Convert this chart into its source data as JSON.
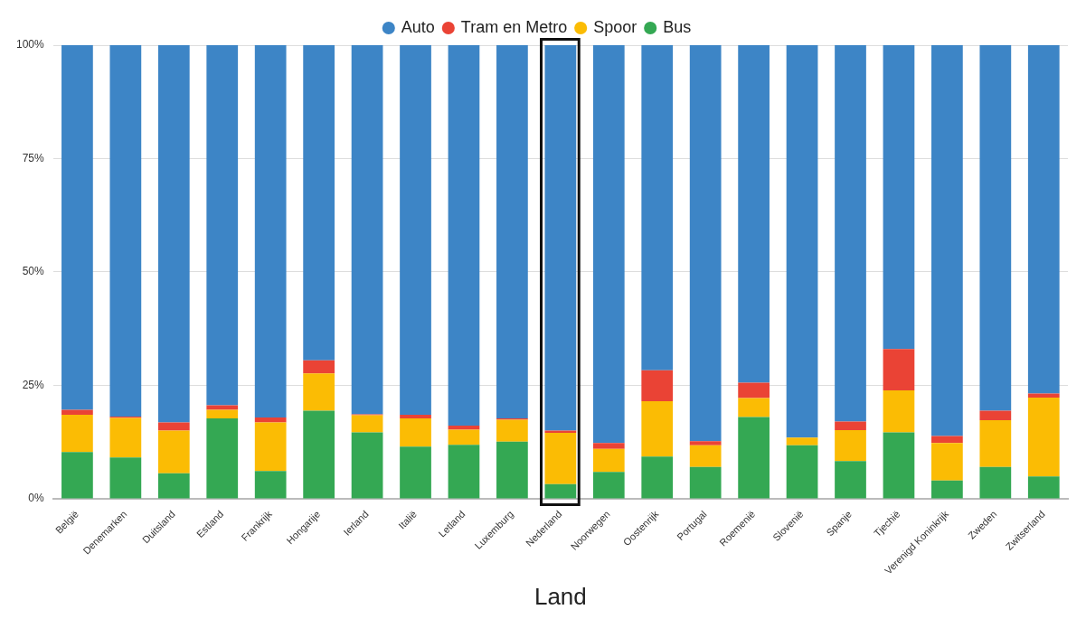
{
  "chart_data": {
    "type": "bar",
    "stacked": true,
    "xlabel": "Land",
    "legend": "top",
    "grid": "y",
    "categories": [
      "België",
      "Denemarken",
      "Duitsland",
      "Estland",
      "Frankrijk",
      "Hongarije",
      "Ierland",
      "Italië",
      "Letland",
      "Luxemburg",
      "Nederland",
      "Noorwegen",
      "Oostenrijk",
      "Portugal",
      "Roemenië",
      "Slovenië",
      "Spanje",
      "Tjechië",
      "Verenigd Koninkrijk",
      "Zweden",
      "Zwitserland"
    ],
    "ylim": [
      0,
      100
    ],
    "yticks": [
      {
        "value": 0,
        "label": "0%"
      },
      {
        "value": 25,
        "label": "25%"
      },
      {
        "value": 50,
        "label": "50%"
      },
      {
        "value": 75,
        "label": "75%"
      },
      {
        "value": 100,
        "label": "100%"
      }
    ],
    "series": [
      {
        "name": "Bus",
        "color": "#34a853",
        "values": [
          10.3,
          9.1,
          5.6,
          17.7,
          6.1,
          19.4,
          14.6,
          11.5,
          11.9,
          12.6,
          3.2,
          5.9,
          9.3,
          7.0,
          18.0,
          11.8,
          8.3,
          14.6,
          4.0,
          7.0,
          4.9
        ]
      },
      {
        "name": "Spoor",
        "color": "#fbbc04",
        "values": [
          8.2,
          8.7,
          9.4,
          1.9,
          10.7,
          8.2,
          3.8,
          6.2,
          3.3,
          4.8,
          11.3,
          5.1,
          12.2,
          4.8,
          4.2,
          1.7,
          6.8,
          9.3,
          8.3,
          10.3,
          17.4
        ]
      },
      {
        "name": "Tram en Metro",
        "color": "#ea4335",
        "values": [
          1.1,
          0.3,
          1.8,
          1.0,
          1.1,
          2.9,
          0.2,
          0.8,
          0.9,
          0.3,
          0.5,
          1.3,
          6.8,
          0.9,
          3.4,
          0,
          1.9,
          9.1,
          1.5,
          2.1,
          0.9
        ]
      },
      {
        "name": "Auto",
        "color": "#3d85c6",
        "values": [
          80.4,
          81.9,
          83.2,
          79.4,
          82.1,
          69.5,
          81.4,
          81.5,
          83.9,
          82.3,
          85.0,
          87.7,
          71.7,
          87.3,
          74.4,
          86.5,
          83.0,
          67.0,
          86.2,
          80.6,
          76.8
        ]
      }
    ]
  }
}
